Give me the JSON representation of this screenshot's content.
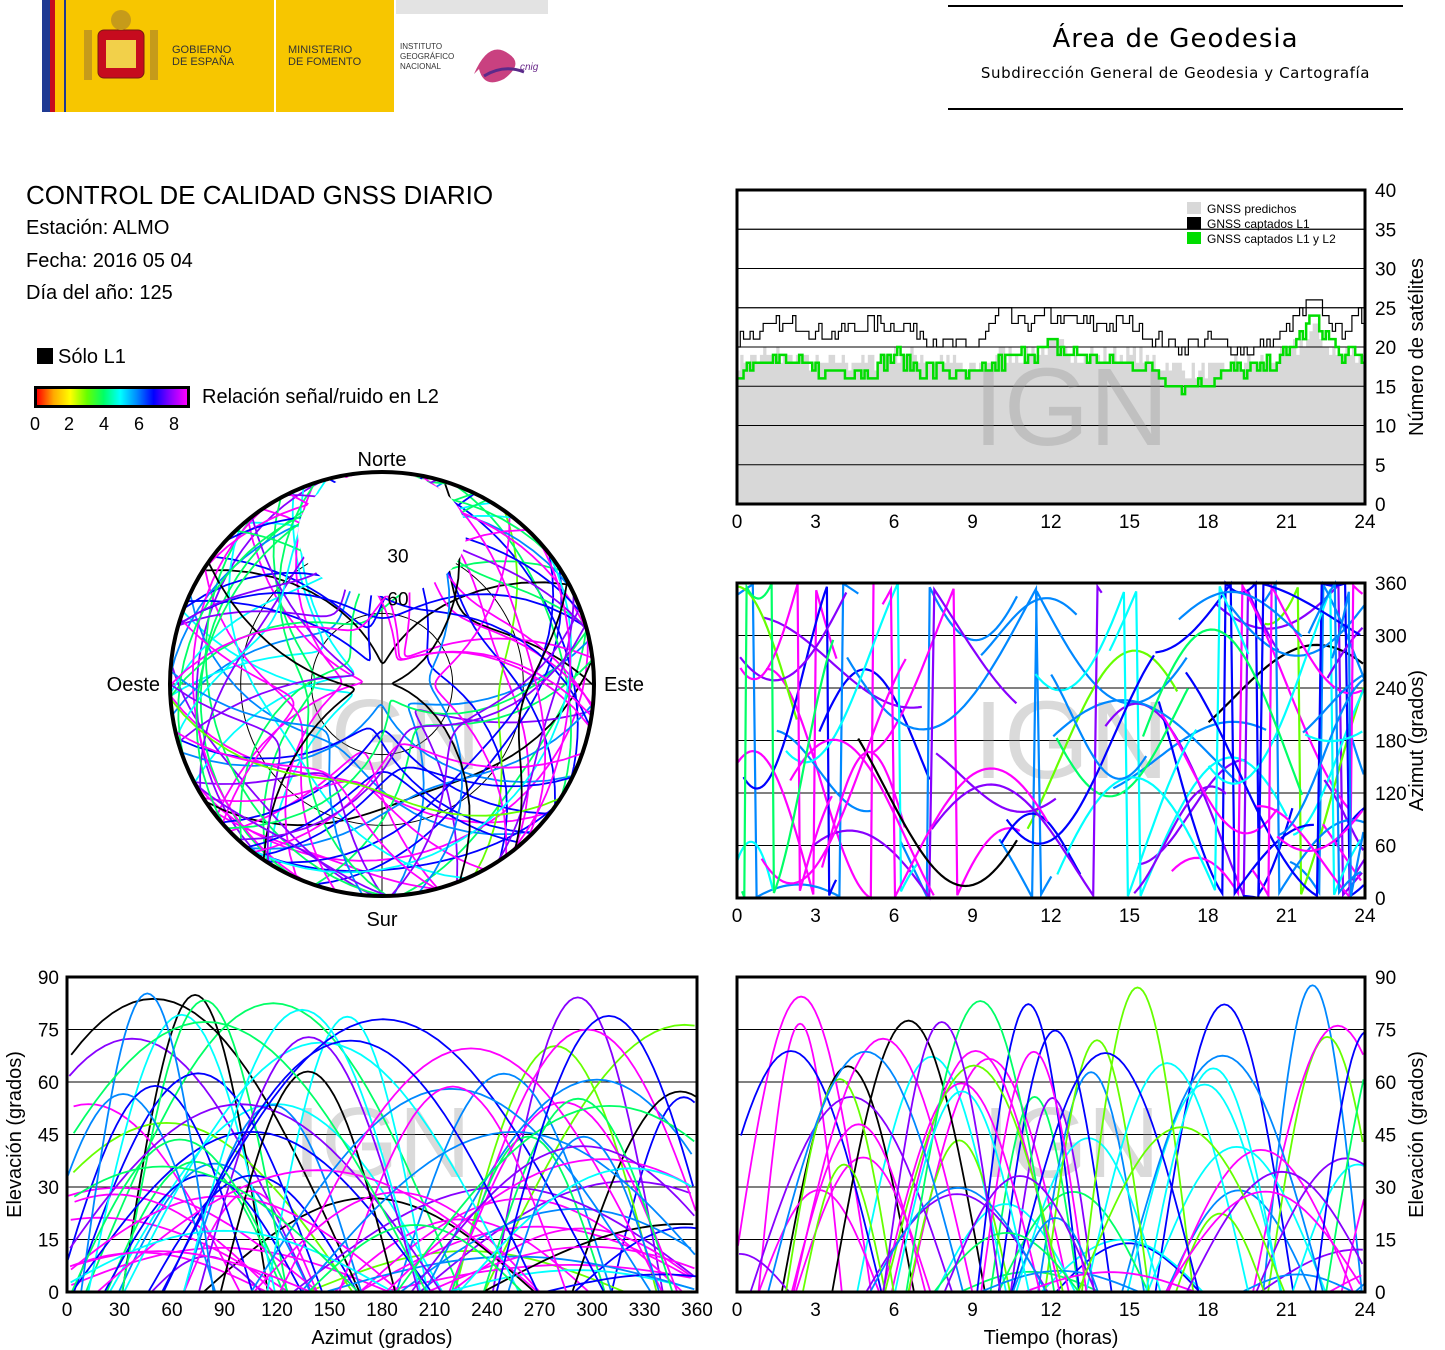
{
  "header": {
    "gobierno": [
      "GOBIERNO",
      "DE ESPAÑA"
    ],
    "ministerio": [
      "MINISTERIO",
      "DE FOMENTO"
    ],
    "instituto": [
      "INSTITUTO",
      "GEOGRÁFICO",
      "NACIONAL"
    ],
    "cnig": "cnig",
    "area_title": "Área de Geodesia",
    "area_subtitle": "Subdirección General de Geodesia y Cartografía"
  },
  "report": {
    "title": "CONTROL DE CALIDAD GNSS DIARIO",
    "station": "Estación: ALMO",
    "date": "Fecha: 2016 05 04",
    "doy": "Día del año: 125"
  },
  "legend": {
    "only_l1": "Sólo L1",
    "snr_label": "Relación señal/ruido en L2",
    "snr_ticks": [
      "0",
      "2",
      "4",
      "6",
      "8"
    ],
    "colors": {
      "only_l1": "#000000",
      "snr_gradient": [
        "#ff0000",
        "#ffaa00",
        "#ffff00",
        "#66ff00",
        "#00ff66",
        "#00ffff",
        "#0088ff",
        "#0000ff",
        "#8800ff",
        "#ff00ff"
      ]
    }
  },
  "watermark": "IGN",
  "polar": {
    "north": "Norte",
    "south": "Sur",
    "east": "Este",
    "west": "Oeste",
    "ring_labels": [
      "30",
      "60"
    ]
  },
  "chart_data": [
    {
      "id": "satellite-count",
      "type": "line",
      "ylabel": "Número de satélites",
      "xlim": [
        0,
        24
      ],
      "ylim": [
        0,
        40
      ],
      "xticks": [
        "0",
        "3",
        "6",
        "9",
        "12",
        "15",
        "18",
        "21",
        "24"
      ],
      "yticks": [
        "0",
        "5",
        "10",
        "15",
        "20",
        "25",
        "30",
        "35",
        "40"
      ],
      "grid": true,
      "legend_position": "top-right",
      "series": [
        {
          "name": "GNSS predichos",
          "color": "#d8d8d8",
          "x": [
            0,
            1,
            2,
            3,
            4,
            5,
            6,
            7,
            8,
            9,
            10,
            11,
            12,
            13,
            14,
            15,
            16,
            17,
            18,
            19,
            20,
            21,
            22,
            23,
            24
          ],
          "y": [
            18,
            19,
            19,
            18,
            18,
            18,
            19,
            19,
            18,
            17,
            19,
            19,
            20,
            19,
            19,
            19,
            18,
            17,
            17,
            18,
            18,
            19,
            22,
            19,
            19
          ]
        },
        {
          "name": "GNSS captados L1",
          "color": "#000000",
          "x": [
            0,
            1,
            2,
            3,
            4,
            5,
            6,
            7,
            8,
            9,
            10,
            11,
            12,
            13,
            14,
            15,
            16,
            17,
            18,
            19,
            20,
            21,
            22,
            23,
            24
          ],
          "y": [
            21,
            22,
            23,
            22,
            22,
            23,
            23,
            22,
            20,
            20,
            24,
            23,
            24,
            23,
            23,
            23,
            21,
            20,
            21,
            20,
            20,
            22,
            26,
            22,
            24
          ]
        },
        {
          "name": "GNSS captados L1 y L2",
          "color": "#00dd00",
          "x": [
            0,
            1,
            2,
            3,
            4,
            5,
            6,
            7,
            8,
            9,
            10,
            11,
            12,
            13,
            14,
            15,
            16,
            17,
            18,
            19,
            20,
            21,
            22,
            23,
            24
          ],
          "y": [
            17,
            19,
            18,
            17,
            17,
            17,
            19,
            17,
            17,
            16,
            18,
            19,
            20,
            19,
            18,
            18,
            17,
            15,
            16,
            17,
            17,
            19,
            24,
            19,
            19
          ]
        }
      ]
    },
    {
      "id": "azimuth-time",
      "type": "scatter",
      "ylabel": "Azimut (grados)",
      "xlim": [
        0,
        24
      ],
      "ylim": [
        0,
        360
      ],
      "xticks": [
        "0",
        "3",
        "6",
        "9",
        "12",
        "15",
        "18",
        "21",
        "24"
      ],
      "yticks": [
        "0",
        "60",
        "120",
        "180",
        "240",
        "300",
        "360"
      ],
      "grid": true
    },
    {
      "id": "skyplot",
      "type": "scatter",
      "polar": true,
      "rlim": [
        0,
        90
      ]
    },
    {
      "id": "elevation-azimuth",
      "type": "scatter",
      "xlabel": "Azimut (grados)",
      "ylabel": "Elevación (grados)",
      "xlim": [
        0,
        360
      ],
      "ylim": [
        0,
        90
      ],
      "xticks": [
        "0",
        "30",
        "60",
        "90",
        "120",
        "150",
        "180",
        "210",
        "240",
        "270",
        "300",
        "330",
        "360"
      ],
      "yticks": [
        "0",
        "15",
        "30",
        "45",
        "60",
        "75",
        "90"
      ],
      "grid": true
    },
    {
      "id": "elevation-time",
      "type": "line",
      "xlabel": "Tiempo (horas)",
      "ylabel": "Elevación (grados)",
      "xlim": [
        0,
        24
      ],
      "ylim": [
        0,
        90
      ],
      "xticks": [
        "0",
        "3",
        "6",
        "9",
        "12",
        "15",
        "18",
        "21",
        "24"
      ],
      "yticks": [
        "0",
        "15",
        "30",
        "45",
        "60",
        "75",
        "90"
      ],
      "grid": true
    }
  ]
}
